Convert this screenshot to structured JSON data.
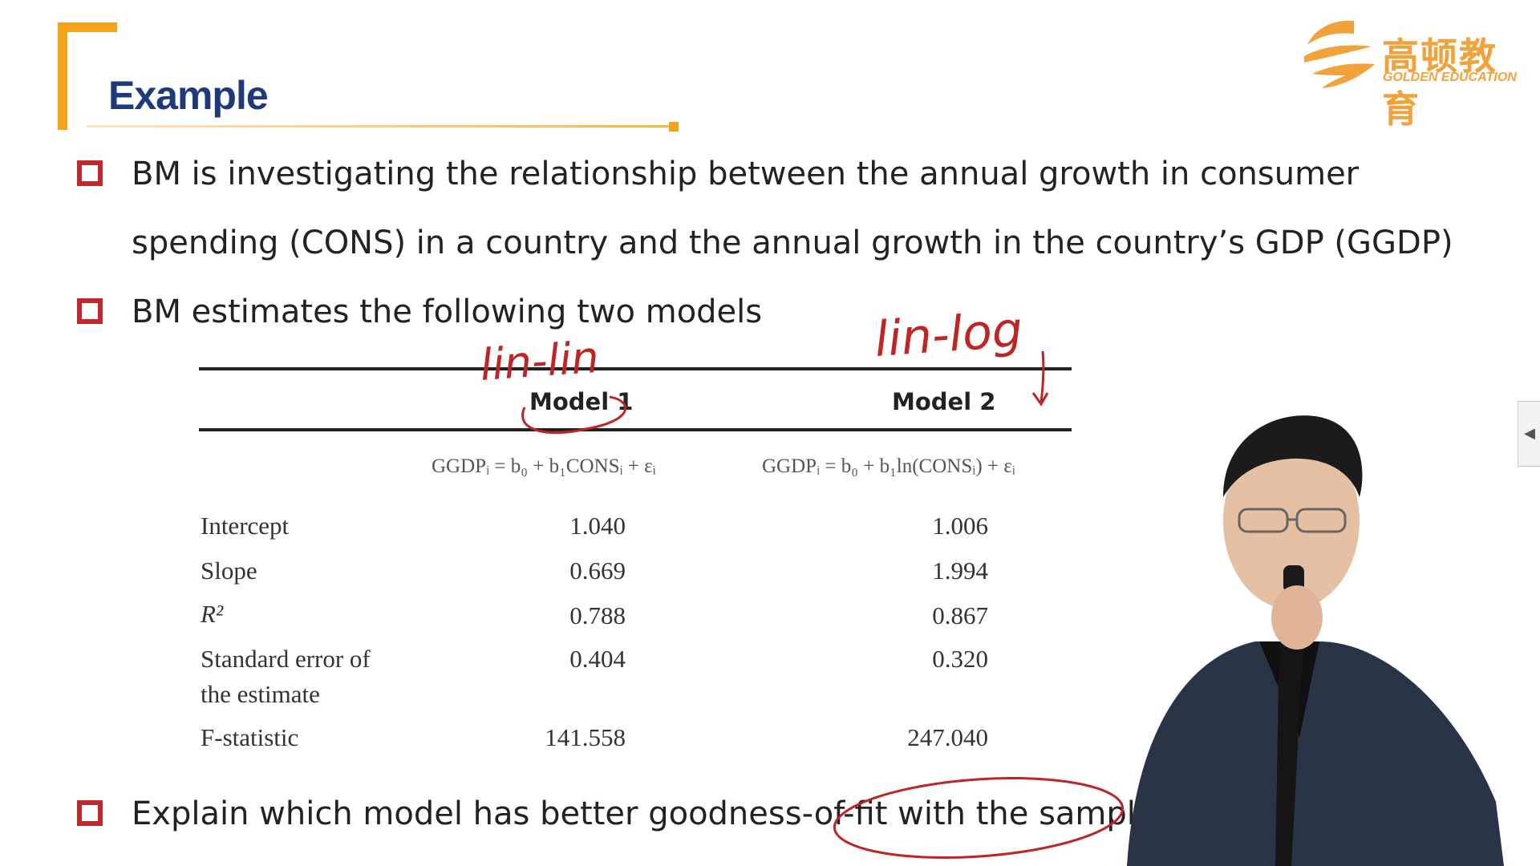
{
  "slide": {
    "title": "Example",
    "bullets": [
      "BM is investigating the relationship between the annual growth in consumer",
      "spending (CONS) in a country and the annual growth in the country’s GDP (GGDP)",
      "BM estimates the following two models",
      "Explain which model has better goodness-of-fit with the sample"
    ]
  },
  "logo": {
    "cn": "高顿教育",
    "en": "GOLDEN EDUCATION"
  },
  "table": {
    "col1": "Model 1",
    "col2": "Model 2",
    "eq1": "GGDPᵢ = b₀ + b₁CONSᵢ + εᵢ",
    "eq2": "GGDPᵢ = b₀ + b₁ln(CONSᵢ) + εᵢ",
    "rows": [
      {
        "label": "Intercept",
        "m1": "1.040",
        "m2": "1.006"
      },
      {
        "label": "Slope",
        "m1": "0.669",
        "m2": "1.994"
      },
      {
        "label": "R²",
        "m1": "0.788",
        "m2": "0.867"
      },
      {
        "label": "Standard error of",
        "label2": "the estimate",
        "m1": "0.404",
        "m2": "0.320"
      },
      {
        "label": "F-statistic",
        "m1": "141.558",
        "m2": "247.040"
      }
    ]
  },
  "annotations": {
    "note1": "lin-lin",
    "note2": "lin-log"
  },
  "ui": {
    "side_tab": "◀"
  },
  "colors": {
    "accent": "#f5a31a",
    "title": "#1f3a7a",
    "bullet": "#c0282e",
    "ink": "#c02424"
  }
}
